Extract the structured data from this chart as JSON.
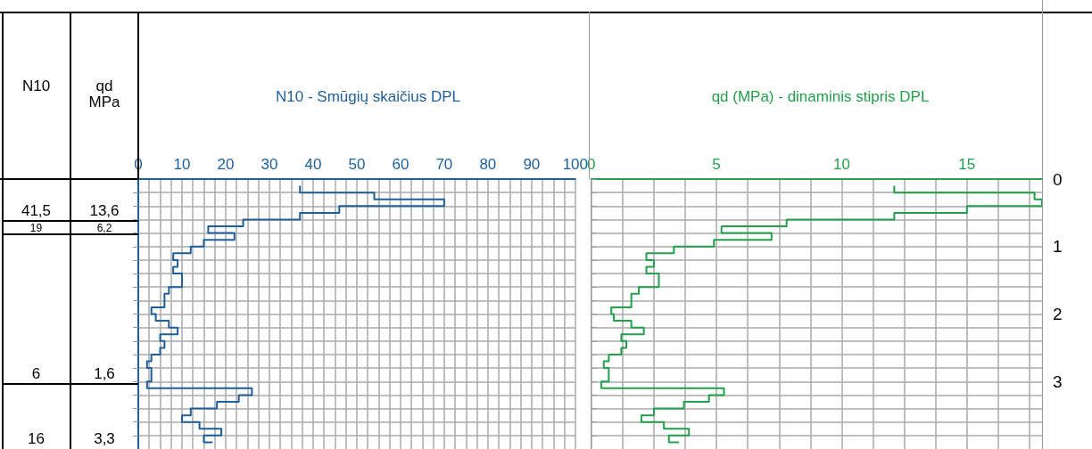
{
  "chart_data": [
    {
      "type": "step",
      "orientation": "horizontal",
      "title": "N10 - Smūgių skaičius DPL",
      "annotations": [
        "N10",
        "41,5",
        "19",
        "6",
        "16"
      ],
      "x": [
        0.1,
        0.2,
        0.3,
        0.4,
        0.5,
        0.6,
        0.7,
        0.8,
        0.9,
        1.0,
        1.1,
        1.2,
        1.3,
        1.4,
        1.5,
        1.6,
        1.7,
        1.8,
        1.9,
        2.0,
        2.1,
        2.2,
        2.3,
        2.4,
        2.5,
        2.6,
        2.7,
        2.8,
        2.9,
        3.0,
        3.1,
        3.2,
        3.3,
        3.4,
        3.5,
        3.6,
        3.7,
        3.8,
        3.9
      ],
      "series": [
        {
          "color": "#1f5f99",
          "values": [
            37,
            54,
            70,
            46,
            37,
            24,
            16,
            22,
            15,
            12,
            8,
            9,
            8,
            10,
            10,
            7,
            6,
            6,
            3,
            4,
            7,
            9,
            5,
            6,
            5,
            3,
            2,
            3,
            3,
            2,
            26,
            23,
            18,
            12,
            10,
            14,
            19,
            15,
            17
          ]
        }
      ],
      "xlim": [
        0,
        100
      ],
      "xticks": [
        0,
        {
          "value": 2.5,
          "label": null
        },
        {
          "value": 5,
          "label": null
        },
        {
          "value": 7.5,
          "label": null
        },
        10,
        {
          "value": 12.5,
          "label": null
        },
        {
          "value": 15,
          "label": null
        },
        {
          "value": 17.5,
          "label": null
        },
        20,
        {
          "value": 22.5,
          "label": null
        },
        {
          "value": 25,
          "label": null
        },
        {
          "value": 27.5,
          "label": null
        },
        30,
        {
          "value": 32.5,
          "label": null
        },
        {
          "value": 35,
          "label": null
        },
        {
          "value": 37.5,
          "label": null
        },
        40,
        {
          "value": 42.5,
          "label": null
        },
        {
          "value": 45,
          "label": null
        },
        {
          "value": 47.5,
          "label": null
        },
        50,
        {
          "value": 52.5,
          "label": null
        },
        {
          "value": 55,
          "label": null
        },
        {
          "value": 57.5,
          "label": null
        },
        60,
        {
          "value": 62.5,
          "label": null
        },
        {
          "value": 65,
          "label": null
        },
        {
          "value": 67.5,
          "label": null
        },
        70,
        {
          "value": 72.5,
          "label": null
        },
        {
          "value": 75,
          "label": null
        },
        {
          "value": 77.5,
          "label": null
        },
        80,
        {
          "value": 82.5,
          "label": null
        },
        {
          "value": 85,
          "label": null
        },
        {
          "value": 87.5,
          "label": null
        },
        90,
        {
          "value": 92.5,
          "label": null
        },
        {
          "value": 95,
          "label": null
        },
        {
          "value": 97.5,
          "label": null
        },
        100
      ],
      "ylim": [
        4,
        0
      ],
      "yticks": [
        0,
        {
          "value": 0.2,
          "label": null
        },
        {
          "value": 0.4,
          "label": null
        },
        {
          "value": 0.6,
          "label": null
        },
        {
          "value": 0.8,
          "label": null
        },
        1,
        {
          "value": 1.2,
          "label": null
        },
        {
          "value": 1.4,
          "label": null
        },
        {
          "value": 1.6,
          "label": null
        },
        {
          "value": 1.8,
          "label": null
        },
        2,
        {
          "value": 2.2,
          "label": null
        },
        {
          "value": 2.4,
          "label": null
        },
        {
          "value": 2.6,
          "label": null
        },
        {
          "value": 2.8,
          "label": null
        },
        3,
        {
          "value": 3.2,
          "label": null
        },
        {
          "value": 3.4,
          "label": null
        },
        {
          "value": 3.6,
          "label": null
        },
        {
          "value": 3.8,
          "label": null
        }
      ],
      "tick_labels": "x",
      "grid": true
    },
    {
      "type": "step",
      "orientation": "horizontal",
      "title": "qd (MPa) - dinaminis stipris DPL",
      "annotations": [
        "qd MPa",
        "13,6",
        "6,2",
        "1,6",
        "3,3"
      ],
      "x": [
        0.1,
        0.2,
        0.3,
        0.4,
        0.5,
        0.6,
        0.7,
        0.8,
        0.9,
        1.0,
        1.1,
        1.2,
        1.3,
        1.4,
        1.5,
        1.6,
        1.7,
        1.8,
        1.9,
        2.0,
        2.1,
        2.2,
        2.3,
        2.4,
        2.5,
        2.6,
        2.7,
        2.8,
        2.9,
        3.0,
        3.1,
        3.2,
        3.3,
        3.4,
        3.5,
        3.6,
        3.7,
        3.8,
        3.9
      ],
      "series": [
        {
          "color": "#22a04b",
          "values": [
            12.1,
            17.7,
            18,
            15.0,
            12.1,
            7.8,
            5.2,
            7.2,
            4.9,
            3.3,
            2.2,
            2.5,
            2.2,
            2.7,
            2.7,
            1.9,
            1.6,
            1.6,
            0.8,
            0.9,
            1.6,
            2.1,
            1.2,
            1.4,
            1.2,
            0.7,
            0.5,
            0.7,
            0.7,
            0.4,
            5.3,
            4.7,
            3.7,
            2.5,
            2.0,
            2.9,
            3.9,
            3.1,
            3.5
          ]
        }
      ],
      "xlim": [
        0,
        18
      ],
      "xticks": [
        0,
        {
          "value": 1.25,
          "label": null
        },
        {
          "value": 2.5,
          "label": null
        },
        {
          "value": 3.75,
          "label": null
        },
        5,
        {
          "value": 6.25,
          "label": null
        },
        {
          "value": 7.5,
          "label": null
        },
        {
          "value": 8.75,
          "label": null
        },
        10,
        {
          "value": 11.25,
          "label": null
        },
        {
          "value": 12.5,
          "label": null
        },
        {
          "value": 13.75,
          "label": null
        },
        15,
        {
          "value": 16.25,
          "label": null
        },
        {
          "value": 17.5,
          "label": null
        }
      ],
      "ylim": [
        4,
        0
      ],
      "yticks": [
        0,
        {
          "value": 0.2,
          "label": null
        },
        {
          "value": 0.4,
          "label": null
        },
        {
          "value": 0.6,
          "label": null
        },
        {
          "value": 0.8,
          "label": null
        },
        1,
        {
          "value": 1.2,
          "label": null
        },
        {
          "value": 1.4,
          "label": null
        },
        {
          "value": 1.6,
          "label": null
        },
        {
          "value": 1.8,
          "label": null
        },
        2,
        {
          "value": 2.2,
          "label": null
        },
        {
          "value": 2.4,
          "label": null
        },
        {
          "value": 2.6,
          "label": null
        },
        {
          "value": 2.8,
          "label": null
        },
        3,
        {
          "value": 3.2,
          "label": null
        },
        {
          "value": 3.4,
          "label": null
        },
        {
          "value": 3.6,
          "label": null
        },
        {
          "value": 3.8,
          "label": null
        }
      ],
      "grid": true
    }
  ]
}
